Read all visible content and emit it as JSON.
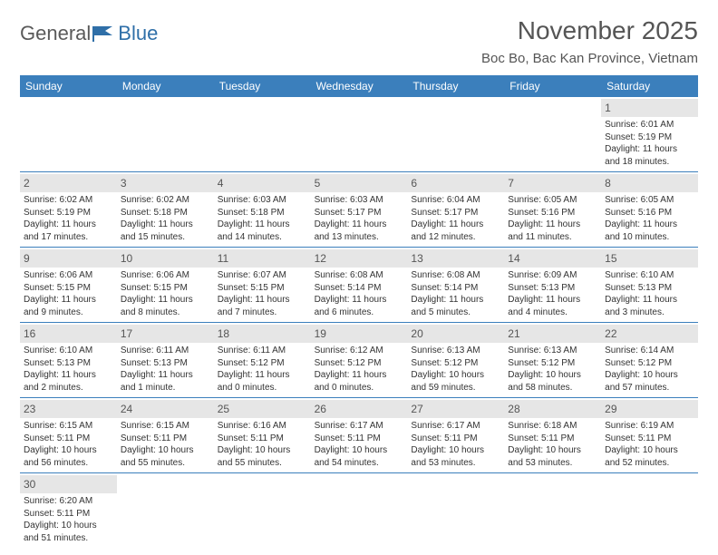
{
  "logo": {
    "text1": "General",
    "text2": "Blue"
  },
  "title": "November 2025",
  "location": "Boc Bo, Bac Kan Province, Vietnam",
  "colors": {
    "header_bg": "#3b7fbc",
    "header_text": "#ffffff",
    "daynum_bg": "#e6e6e6",
    "border": "#3b7fbc",
    "title_color": "#555555"
  },
  "weekdays": [
    "Sunday",
    "Monday",
    "Tuesday",
    "Wednesday",
    "Thursday",
    "Friday",
    "Saturday"
  ],
  "weeks": [
    [
      null,
      null,
      null,
      null,
      null,
      null,
      {
        "n": "1",
        "sr": "6:01 AM",
        "ss": "5:19 PM",
        "dl": "11 hours and 18 minutes."
      }
    ],
    [
      {
        "n": "2",
        "sr": "6:02 AM",
        "ss": "5:19 PM",
        "dl": "11 hours and 17 minutes."
      },
      {
        "n": "3",
        "sr": "6:02 AM",
        "ss": "5:18 PM",
        "dl": "11 hours and 15 minutes."
      },
      {
        "n": "4",
        "sr": "6:03 AM",
        "ss": "5:18 PM",
        "dl": "11 hours and 14 minutes."
      },
      {
        "n": "5",
        "sr": "6:03 AM",
        "ss": "5:17 PM",
        "dl": "11 hours and 13 minutes."
      },
      {
        "n": "6",
        "sr": "6:04 AM",
        "ss": "5:17 PM",
        "dl": "11 hours and 12 minutes."
      },
      {
        "n": "7",
        "sr": "6:05 AM",
        "ss": "5:16 PM",
        "dl": "11 hours and 11 minutes."
      },
      {
        "n": "8",
        "sr": "6:05 AM",
        "ss": "5:16 PM",
        "dl": "11 hours and 10 minutes."
      }
    ],
    [
      {
        "n": "9",
        "sr": "6:06 AM",
        "ss": "5:15 PM",
        "dl": "11 hours and 9 minutes."
      },
      {
        "n": "10",
        "sr": "6:06 AM",
        "ss": "5:15 PM",
        "dl": "11 hours and 8 minutes."
      },
      {
        "n": "11",
        "sr": "6:07 AM",
        "ss": "5:15 PM",
        "dl": "11 hours and 7 minutes."
      },
      {
        "n": "12",
        "sr": "6:08 AM",
        "ss": "5:14 PM",
        "dl": "11 hours and 6 minutes."
      },
      {
        "n": "13",
        "sr": "6:08 AM",
        "ss": "5:14 PM",
        "dl": "11 hours and 5 minutes."
      },
      {
        "n": "14",
        "sr": "6:09 AM",
        "ss": "5:13 PM",
        "dl": "11 hours and 4 minutes."
      },
      {
        "n": "15",
        "sr": "6:10 AM",
        "ss": "5:13 PM",
        "dl": "11 hours and 3 minutes."
      }
    ],
    [
      {
        "n": "16",
        "sr": "6:10 AM",
        "ss": "5:13 PM",
        "dl": "11 hours and 2 minutes."
      },
      {
        "n": "17",
        "sr": "6:11 AM",
        "ss": "5:13 PM",
        "dl": "11 hours and 1 minute."
      },
      {
        "n": "18",
        "sr": "6:11 AM",
        "ss": "5:12 PM",
        "dl": "11 hours and 0 minutes."
      },
      {
        "n": "19",
        "sr": "6:12 AM",
        "ss": "5:12 PM",
        "dl": "11 hours and 0 minutes."
      },
      {
        "n": "20",
        "sr": "6:13 AM",
        "ss": "5:12 PM",
        "dl": "10 hours and 59 minutes."
      },
      {
        "n": "21",
        "sr": "6:13 AM",
        "ss": "5:12 PM",
        "dl": "10 hours and 58 minutes."
      },
      {
        "n": "22",
        "sr": "6:14 AM",
        "ss": "5:12 PM",
        "dl": "10 hours and 57 minutes."
      }
    ],
    [
      {
        "n": "23",
        "sr": "6:15 AM",
        "ss": "5:11 PM",
        "dl": "10 hours and 56 minutes."
      },
      {
        "n": "24",
        "sr": "6:15 AM",
        "ss": "5:11 PM",
        "dl": "10 hours and 55 minutes."
      },
      {
        "n": "25",
        "sr": "6:16 AM",
        "ss": "5:11 PM",
        "dl": "10 hours and 55 minutes."
      },
      {
        "n": "26",
        "sr": "6:17 AM",
        "ss": "5:11 PM",
        "dl": "10 hours and 54 minutes."
      },
      {
        "n": "27",
        "sr": "6:17 AM",
        "ss": "5:11 PM",
        "dl": "10 hours and 53 minutes."
      },
      {
        "n": "28",
        "sr": "6:18 AM",
        "ss": "5:11 PM",
        "dl": "10 hours and 53 minutes."
      },
      {
        "n": "29",
        "sr": "6:19 AM",
        "ss": "5:11 PM",
        "dl": "10 hours and 52 minutes."
      }
    ],
    [
      {
        "n": "30",
        "sr": "6:20 AM",
        "ss": "5:11 PM",
        "dl": "10 hours and 51 minutes."
      },
      null,
      null,
      null,
      null,
      null,
      null
    ]
  ],
  "labels": {
    "sunrise": "Sunrise:",
    "sunset": "Sunset:",
    "daylight": "Daylight:"
  }
}
